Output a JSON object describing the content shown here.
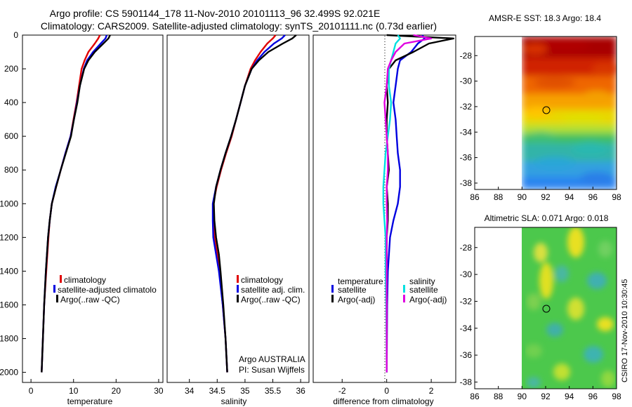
{
  "header": {
    "line1": "Argo profile: CS 5901144_178 11-Nov-2010 20101113_96 32.499S 92.021E",
    "line2": "Climatology: CARS2009. Satellite-adjusted climatology: synTS_20101111.nc (0.73d earlier)"
  },
  "chart_data": [
    {
      "type": "line",
      "panel": "temperature",
      "xlabel": "temperature",
      "ylabel": "",
      "xlim": [
        -2,
        31
      ],
      "ylim": [
        2060,
        0
      ],
      "x_ticks": [
        0,
        10,
        20,
        30
      ],
      "y_ticks": [
        0,
        200,
        400,
        600,
        800,
        1000,
        1200,
        1400,
        1600,
        1800,
        2000
      ],
      "pressure": [
        0,
        20,
        50,
        100,
        150,
        200,
        300,
        400,
        500,
        600,
        700,
        800,
        900,
        1000,
        1100,
        1200,
        1400,
        1600,
        1800,
        2000
      ],
      "series": [
        {
          "name": "climatology",
          "color": "#e00000",
          "values": [
            16.2,
            15.8,
            15.0,
            13.5,
            12.6,
            11.9,
            11.3,
            10.7,
            10.0,
            9.3,
            8.1,
            7.0,
            5.9,
            4.9,
            4.4,
            4.1,
            3.6,
            3.1,
            2.8,
            2.5
          ]
        },
        {
          "name": "satellite-adjusted climatology",
          "color": "#0000e0",
          "values": [
            17.8,
            17.5,
            16.4,
            14.6,
            13.2,
            12.4,
            11.5,
            10.8,
            10.1,
            9.3,
            8.1,
            7.0,
            5.8,
            4.9,
            4.4,
            4.0,
            3.5,
            3.1,
            2.8,
            2.5
          ]
        },
        {
          "name": "Argo(..raw -QC)",
          "color": "#000000",
          "values": [
            18.6,
            18.2,
            17.0,
            15.0,
            13.5,
            12.5,
            11.5,
            10.9,
            10.1,
            9.4,
            8.2,
            7.0,
            5.9,
            4.9,
            4.4,
            4.0,
            3.5,
            3.1,
            2.8,
            2.5
          ]
        }
      ],
      "legend": [
        "climatology",
        "satellite-adjusted climatology",
        "Argo(..raw -QC)"
      ],
      "legend_position": "bottom-right"
    },
    {
      "type": "line",
      "panel": "salinity",
      "xlabel": "salinity",
      "ylabel": "",
      "xlim": [
        33.6,
        36.15
      ],
      "ylim": [
        2060,
        0
      ],
      "x_ticks": [
        34,
        34.5,
        35,
        35.5,
        36
      ],
      "y_ticks": [
        0,
        200,
        400,
        600,
        800,
        1000,
        1200,
        1400,
        1600,
        1800,
        2000
      ],
      "pressure": [
        0,
        20,
        50,
        100,
        150,
        200,
        300,
        400,
        500,
        600,
        700,
        800,
        900,
        1000,
        1100,
        1200,
        1300,
        1400,
        1600,
        1800,
        2000
      ],
      "series": [
        {
          "name": "climatology",
          "color": "#e00000",
          "values": [
            35.55,
            35.5,
            35.4,
            35.28,
            35.18,
            35.1,
            35.0,
            34.92,
            34.84,
            34.76,
            34.66,
            34.57,
            34.49,
            34.43,
            34.43,
            34.45,
            34.5,
            34.54,
            34.6,
            34.65,
            34.68
          ]
        },
        {
          "name": "satellite adj. clim.",
          "color": "#0000e0",
          "values": [
            35.72,
            35.66,
            35.52,
            35.35,
            35.22,
            35.12,
            35.0,
            34.92,
            34.84,
            34.75,
            34.65,
            34.56,
            34.48,
            34.42,
            34.42,
            34.43,
            34.48,
            34.53,
            34.6,
            34.65,
            34.68
          ]
        },
        {
          "name": "Argo(..raw -QC)",
          "color": "#000000",
          "values": [
            35.92,
            35.85,
            35.68,
            35.42,
            35.25,
            35.12,
            35.0,
            34.92,
            34.84,
            34.75,
            34.65,
            34.56,
            34.48,
            34.44,
            34.45,
            34.48,
            34.53,
            34.56,
            34.61,
            34.65,
            34.68
          ]
        }
      ],
      "legend": [
        "climatology",
        "satellite adj. clim.",
        "Argo(..raw -QC)"
      ],
      "legend_position": "bottom-right"
    },
    {
      "type": "line",
      "panel": "difference",
      "xlabel": "difference from climatology",
      "ylabel": "",
      "xlim": [
        -3.3,
        3.1
      ],
      "ylim": [
        2060,
        0
      ],
      "x_ticks": [
        -2,
        0,
        2
      ],
      "y_ticks": [
        0,
        200,
        400,
        600,
        800,
        1000,
        1200,
        1400,
        1600,
        1800,
        2000
      ],
      "pressure": [
        0,
        20,
        50,
        100,
        150,
        200,
        300,
        400,
        500,
        600,
        700,
        800,
        900,
        1000,
        1100,
        1200,
        1400,
        1600,
        1800,
        2000
      ],
      "series": [
        {
          "name": "temperature satellite",
          "color": "#0000e0",
          "values": [
            1.6,
            1.7,
            1.4,
            1.1,
            0.6,
            0.5,
            0.4,
            0.3,
            0.4,
            0.45,
            0.5,
            0.6,
            0.6,
            0.5,
            0.3,
            0.15,
            0.05,
            0.02,
            0.01,
            0.0
          ]
        },
        {
          "name": "temperature Argo(-adj)",
          "color": "#000000",
          "values": [
            0.0,
            3.0,
            1.9,
            1.2,
            0.4,
            0.1,
            0.0,
            0.05,
            0.0,
            0.0,
            0.05,
            0.1,
            0.0,
            0.05,
            0.05,
            0.0,
            0.0,
            0.0,
            0.0,
            0.0
          ]
        },
        {
          "name": "salinity satellite",
          "color": "#00e0e0",
          "values": [
            0.5,
            0.6,
            0.4,
            0.3,
            0.2,
            0.1,
            0.1,
            0.2,
            0.15,
            0.05,
            -0.05,
            -0.1,
            -0.15,
            -0.15,
            -0.1,
            -0.05,
            -0.05,
            -0.02,
            -0.01,
            0.0
          ]
        },
        {
          "name": "salinity Argo(-adj)",
          "color": "#e000e0",
          "values": [
            1.2,
            2.0,
            0.8,
            0.4,
            0.2,
            0.05,
            0.0,
            -0.1,
            -0.05,
            0.0,
            0.05,
            0.05,
            0.0,
            0.0,
            0.02,
            0.0,
            0.0,
            0.0,
            0.0,
            0.0
          ]
        }
      ],
      "legend_groups": [
        "temperature",
        "salinity"
      ],
      "legend": [
        "satellite",
        "Argo(-adj)",
        "satellite",
        "Argo(-adj)"
      ],
      "legend_position": "bottom"
    },
    {
      "type": "heatmap",
      "panel": "sst-map",
      "title": "AMSR-E SST: 18.3 Argo: 18.4",
      "xlim": [
        86,
        98
      ],
      "ylim": [
        -38.5,
        -26.5
      ],
      "x_ticks": [
        86,
        88,
        90,
        92,
        94,
        96,
        98
      ],
      "y_ticks": [
        -28,
        -30,
        -32,
        -34,
        -36,
        -38
      ],
      "data_lon_range": [
        90,
        98
      ],
      "argo_position": {
        "lon": 92.021,
        "lat": -32.499
      },
      "colormap": "jet"
    },
    {
      "type": "heatmap",
      "panel": "sla-map",
      "title": "Altimetric SLA: 0.071 Argo: 0.018",
      "xlim": [
        86,
        98
      ],
      "ylim": [
        -38.5,
        -26.5
      ],
      "x_ticks": [
        86,
        88,
        90,
        92,
        94,
        96,
        98
      ],
      "y_ticks": [
        -28,
        -30,
        -32,
        -34,
        -36,
        -38
      ],
      "data_lon_range": [
        90,
        98
      ],
      "argo_position": {
        "lon": 92.021,
        "lat": -32.499
      },
      "colormap": "jet"
    }
  ],
  "legends": {
    "temperature": [
      "climatology",
      "satellite-adjusted climatolo",
      "Argo(..raw -QC)"
    ],
    "salinity": [
      "climatology",
      "satellite adj. clim.",
      "Argo(..raw -QC)"
    ],
    "difference_headers": [
      "temperature",
      "salinity"
    ],
    "difference": [
      "satellite",
      "Argo(-adj)",
      "satellite",
      "Argo(-adj)"
    ]
  },
  "colors": {
    "climatology": "#e00000",
    "satellite": "#0000e0",
    "argo": "#000000",
    "salinity_satellite": "#00e0e0",
    "salinity_argo": "#e000e0"
  },
  "institution": {
    "line1": "Argo AUSTRALIA",
    "line2": "PI: Susan Wijffels"
  },
  "credit": "CSIRO 17-Nov-2010 10:30:45"
}
